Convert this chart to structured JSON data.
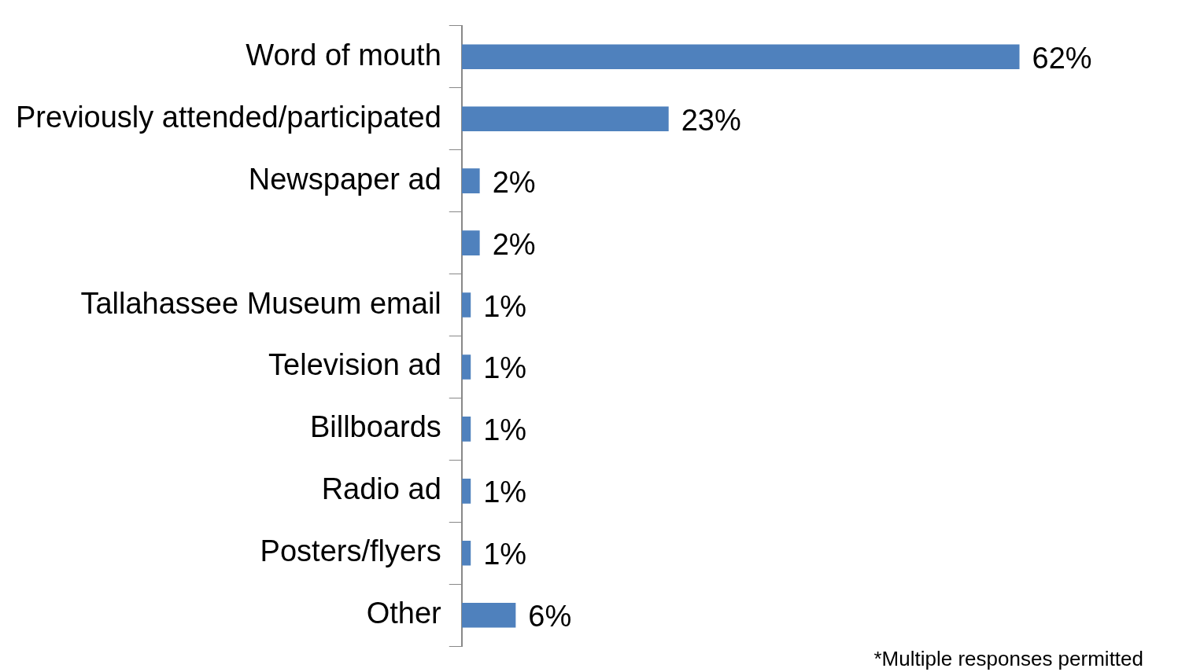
{
  "chart_data": {
    "type": "bar",
    "orientation": "horizontal",
    "categories": [
      "Word of mouth",
      "Previously attended/participated",
      "Newspaper ad",
      null,
      "Tallahassee Museum email",
      "Television ad",
      "Billboards",
      "Radio ad",
      "Posters/flyers",
      "Other"
    ],
    "values": [
      62,
      23,
      2,
      2,
      1,
      1,
      1,
      1,
      1,
      6
    ],
    "value_labels": [
      "62%",
      "23%",
      "2%",
      "2%",
      "1%",
      "1%",
      "1%",
      "1%",
      "1%",
      "6%"
    ],
    "color": "#4f81bd",
    "tick_labels": "y",
    "grid": false,
    "legend": false,
    "annotations": [
      "*Multiple responses permitted"
    ]
  }
}
